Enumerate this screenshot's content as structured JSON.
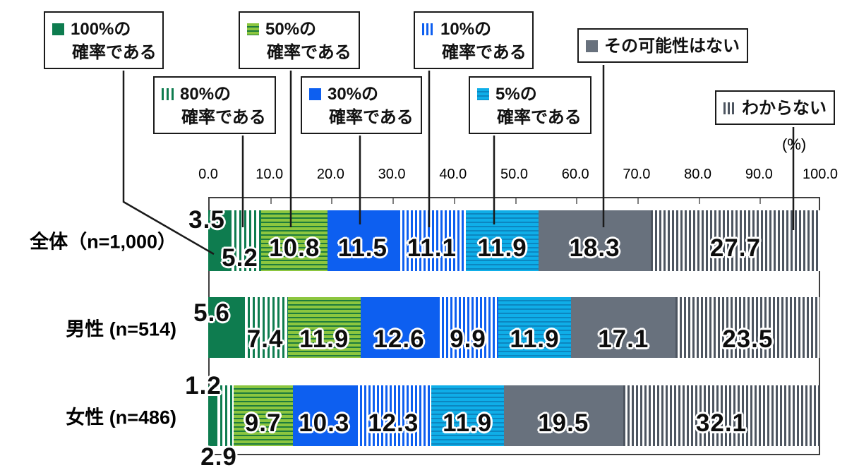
{
  "legend": {
    "items": [
      {
        "line1": "100%の",
        "line2": "確率である"
      },
      {
        "line1": "80%の",
        "line2": "確率である"
      },
      {
        "line1": "50%の",
        "line2": "確率である"
      },
      {
        "line1": "30%の",
        "line2": "確率である"
      },
      {
        "line1": "10%の",
        "line2": "確率である"
      },
      {
        "line1": "5%の",
        "line2": "確率である"
      },
      {
        "line1": "その可能性はない",
        "line2": ""
      },
      {
        "line1": "わからない",
        "line2": ""
      }
    ]
  },
  "axis": {
    "tick_labels": [
      "0.0",
      "10.0",
      "20.0",
      "30.0",
      "40.0",
      "50.0",
      "60.0",
      "70.0",
      "80.0",
      "90.0",
      "100.0"
    ],
    "unit_label": "(%)",
    "xlim": [
      0,
      100
    ]
  },
  "chart_data": {
    "type": "bar",
    "stacked": true,
    "orientation": "horizontal",
    "grid": false,
    "legend_position": "top",
    "xlim": [
      0,
      100
    ],
    "categories": [
      "全体（n=1,000）",
      "男性 (n=514)",
      "女性 (n=486)"
    ],
    "series": [
      {
        "name": "100%の確率である",
        "pattern": "solid",
        "color": "#0E7C4F",
        "values": [
          3.5,
          5.6,
          1.2
        ]
      },
      {
        "name": "80%の確率である",
        "pattern": "vstripe",
        "color": "#0E7C4F",
        "color2": "#FFFFFF",
        "period": 7,
        "values": [
          5.2,
          7.4,
          2.9
        ]
      },
      {
        "name": "50%の確率である",
        "pattern": "hstripe",
        "color": "#8CC63F",
        "color2": "#1E7C3C",
        "values": [
          10.8,
          11.9,
          9.7
        ]
      },
      {
        "name": "30%の確率である",
        "pattern": "solid",
        "color": "#0D5FF0",
        "values": [
          11.5,
          12.6,
          10.3
        ]
      },
      {
        "name": "10%の確率である",
        "pattern": "vstripe",
        "color": "#0D5FF0",
        "color2": "#FFFFFF",
        "period": 6,
        "values": [
          11.1,
          9.9,
          12.3
        ]
      },
      {
        "name": "5%の確率である",
        "pattern": "hstripe",
        "color": "#0FAEE8",
        "color2": "#0C86C0",
        "values": [
          11.9,
          11.9,
          11.9
        ]
      },
      {
        "name": "その可能性はない",
        "pattern": "solid",
        "color": "#68717D",
        "values": [
          18.3,
          17.1,
          19.5
        ]
      },
      {
        "name": "わからない",
        "pattern": "vstripe",
        "color": "#4D5560",
        "color2": "#FFFFFF",
        "period": 6,
        "values": [
          27.7,
          23.5,
          32.1
        ]
      }
    ]
  }
}
